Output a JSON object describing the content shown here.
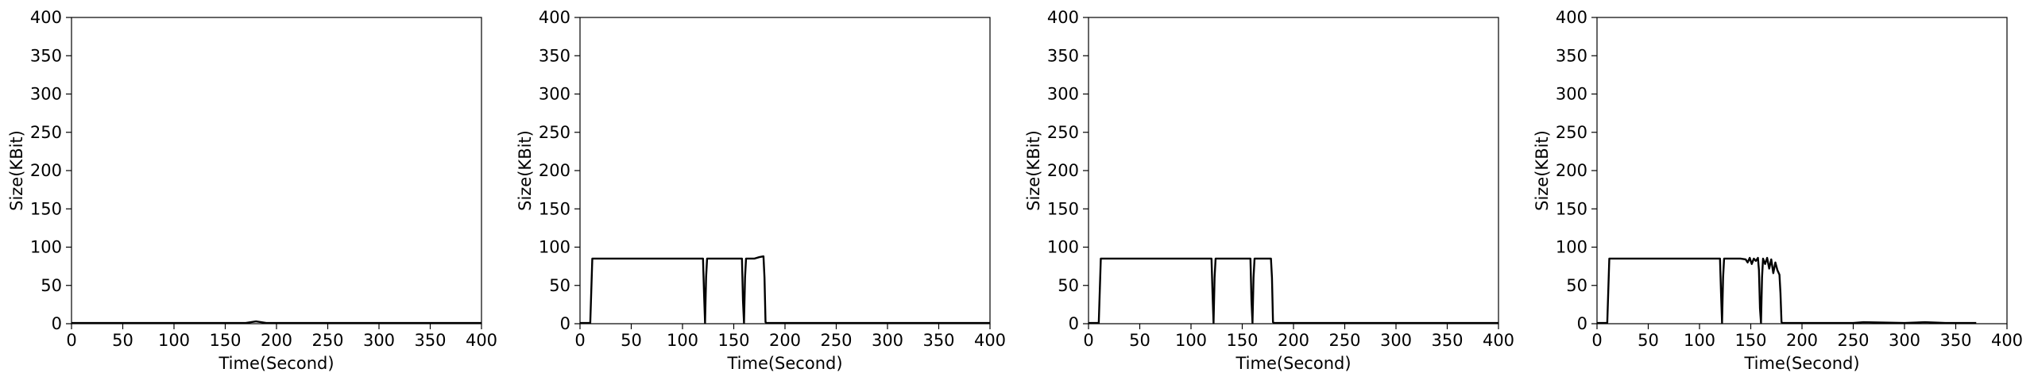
{
  "chart_data": [
    {
      "type": "line",
      "title": "",
      "xlabel": "Time(Second)",
      "ylabel": "Size(KBit)",
      "xlim": [
        0,
        400
      ],
      "ylim": [
        0,
        400
      ],
      "xticks": [
        0,
        50,
        100,
        150,
        200,
        250,
        300,
        350,
        400
      ],
      "yticks": [
        0,
        50,
        100,
        150,
        200,
        250,
        300,
        350,
        400
      ],
      "grid": false,
      "line_color": "#000000",
      "series": [
        {
          "x": [
            0,
            100,
            170,
            175,
            180,
            185,
            190,
            250,
            300,
            400
          ],
          "y": [
            1,
            1,
            1,
            2,
            3,
            2,
            1,
            1,
            1,
            1
          ]
        }
      ]
    },
    {
      "type": "line",
      "title": "",
      "xlabel": "Time(Second)",
      "ylabel": "Size(KBit)",
      "xlim": [
        0,
        400
      ],
      "ylim": [
        0,
        400
      ],
      "xticks": [
        0,
        50,
        100,
        150,
        200,
        250,
        300,
        350,
        400
      ],
      "yticks": [
        0,
        50,
        100,
        150,
        200,
        250,
        300,
        350,
        400
      ],
      "grid": false,
      "line_color": "#000000",
      "series": [
        {
          "x": [
            0,
            10,
            12,
            30,
            60,
            90,
            110,
            120,
            121,
            122,
            123,
            124,
            140,
            155,
            158,
            159,
            160,
            161,
            162,
            170,
            175,
            179,
            180,
            181,
            182,
            200,
            250,
            300,
            350,
            400
          ],
          "y": [
            1,
            1,
            85,
            85,
            85,
            85,
            85,
            85,
            40,
            1,
            60,
            85,
            85,
            85,
            85,
            30,
            1,
            60,
            85,
            85,
            87,
            88,
            60,
            2,
            1,
            1,
            1,
            1,
            1,
            1
          ]
        }
      ]
    },
    {
      "type": "line",
      "title": "",
      "xlabel": "Time(Second)",
      "ylabel": "Size(KBit)",
      "xlim": [
        0,
        400
      ],
      "ylim": [
        0,
        400
      ],
      "xticks": [
        0,
        50,
        100,
        150,
        200,
        250,
        300,
        350,
        400
      ],
      "yticks": [
        0,
        50,
        100,
        150,
        200,
        250,
        300,
        350,
        400
      ],
      "grid": false,
      "line_color": "#000000",
      "series": [
        {
          "x": [
            0,
            10,
            12,
            30,
            60,
            90,
            110,
            120,
            121,
            122,
            123,
            124,
            140,
            155,
            158,
            159,
            160,
            161,
            162,
            170,
            178,
            179,
            180,
            181,
            200,
            250,
            300,
            350,
            400
          ],
          "y": [
            1,
            1,
            85,
            85,
            85,
            85,
            85,
            85,
            40,
            1,
            60,
            85,
            85,
            85,
            85,
            30,
            1,
            60,
            85,
            85,
            85,
            60,
            2,
            1,
            1,
            1,
            1,
            1,
            1
          ]
        }
      ]
    },
    {
      "type": "line",
      "title": "",
      "xlabel": "Time(Second)",
      "ylabel": "Size(KBit)",
      "xlim": [
        0,
        400
      ],
      "ylim": [
        0,
        400
      ],
      "xticks": [
        0,
        50,
        100,
        150,
        200,
        250,
        300,
        350,
        400
      ],
      "yticks": [
        0,
        50,
        100,
        150,
        200,
        250,
        300,
        350,
        400
      ],
      "grid": false,
      "line_color": "#000000",
      "series": [
        {
          "x": [
            0,
            10,
            12,
            30,
            60,
            90,
            110,
            120,
            121,
            122,
            123,
            124,
            140,
            145,
            147,
            149,
            151,
            153,
            155,
            157,
            158,
            159,
            160,
            161,
            162,
            164,
            166,
            168,
            170,
            172,
            174,
            176,
            178,
            179,
            180,
            181,
            200,
            250,
            260,
            300,
            320,
            340,
            370
          ],
          "y": [
            1,
            1,
            85,
            85,
            85,
            85,
            85,
            85,
            40,
            1,
            60,
            85,
            85,
            84,
            80,
            86,
            78,
            85,
            82,
            86,
            70,
            20,
            1,
            60,
            85,
            78,
            86,
            72,
            84,
            66,
            80,
            70,
            64,
            40,
            2,
            1,
            1,
            1,
            2,
            1,
            2,
            1,
            1
          ]
        }
      ]
    }
  ]
}
